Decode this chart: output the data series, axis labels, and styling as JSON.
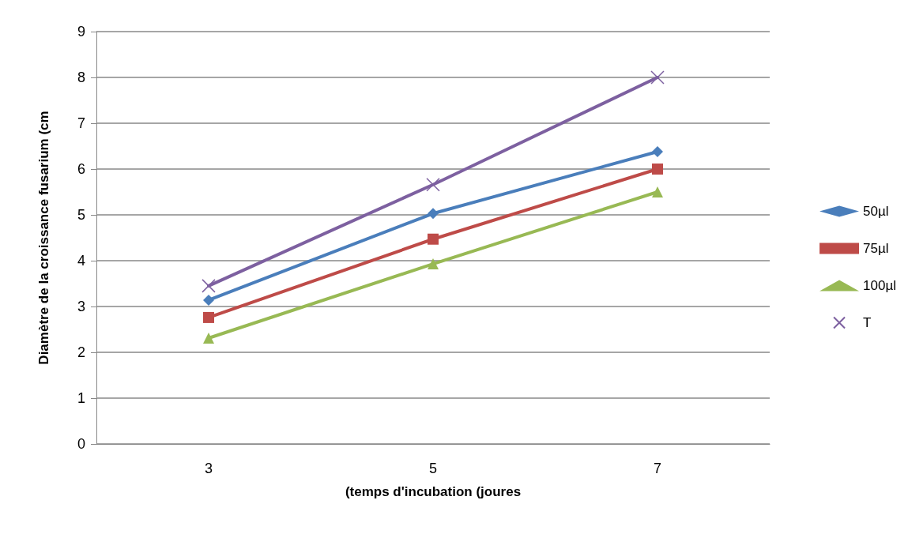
{
  "chart_data": {
    "type": "line",
    "xlabel": "(temps d'incubation (joures",
    "ylabel": "Diamètre de la croissance fusarium (cm",
    "categories": [
      "3",
      "5",
      "7"
    ],
    "series": [
      {
        "name": "50µl",
        "color": "#4a7ebb",
        "marker": "diamond",
        "values": [
          3.14,
          5.03,
          6.38
        ]
      },
      {
        "name": "75µl",
        "color": "#be4b48",
        "marker": "square",
        "values": [
          2.76,
          4.47,
          6.0
        ]
      },
      {
        "name": "100µl",
        "color": "#98b954",
        "marker": "triangle",
        "values": [
          2.31,
          3.93,
          5.5
        ]
      },
      {
        "name": "T",
        "color": "#7d60a0",
        "marker": "cross",
        "values": [
          3.45,
          5.66,
          8.0
        ]
      }
    ],
    "ylim": [
      0,
      9
    ],
    "yticks": [
      0,
      1,
      2,
      3,
      4,
      5,
      6,
      7,
      8,
      9
    ],
    "grid": "y",
    "legend": "right",
    "line_style": "solid"
  }
}
